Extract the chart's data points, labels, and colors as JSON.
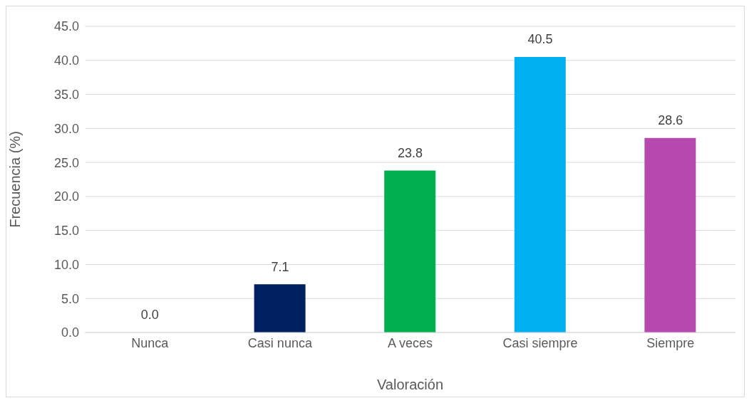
{
  "chart_data": {
    "type": "bar",
    "xlabel": "Valoración",
    "ylabel": "Frecuencia (%)",
    "categories": [
      "Nunca",
      "Casi nunca",
      "A veces",
      "Casi siempre",
      "Siempre"
    ],
    "values": [
      0.0,
      7.1,
      23.8,
      40.5,
      28.6
    ],
    "colors": [
      "#c00000",
      "#002060",
      "#00b050",
      "#00b0f0",
      "#b549b0"
    ],
    "value_labels": [
      "0.0",
      "7.1",
      "23.8",
      "40.5",
      "28.6"
    ],
    "ylim": [
      0,
      45
    ],
    "yticks": [
      {
        "value": 0,
        "label": "0.0"
      },
      {
        "value": 5,
        "label": "5.0"
      },
      {
        "value": 10,
        "label": "10.0"
      },
      {
        "value": 15,
        "label": "15.0"
      },
      {
        "value": 20,
        "label": "20.0"
      },
      {
        "value": 25,
        "label": "25.0"
      },
      {
        "value": 30,
        "label": "30.0"
      },
      {
        "value": 35,
        "label": "35.0"
      },
      {
        "value": 40,
        "label": "40.0"
      },
      {
        "value": 45,
        "label": "45.0"
      }
    ],
    "grid": "y",
    "legend": false
  }
}
